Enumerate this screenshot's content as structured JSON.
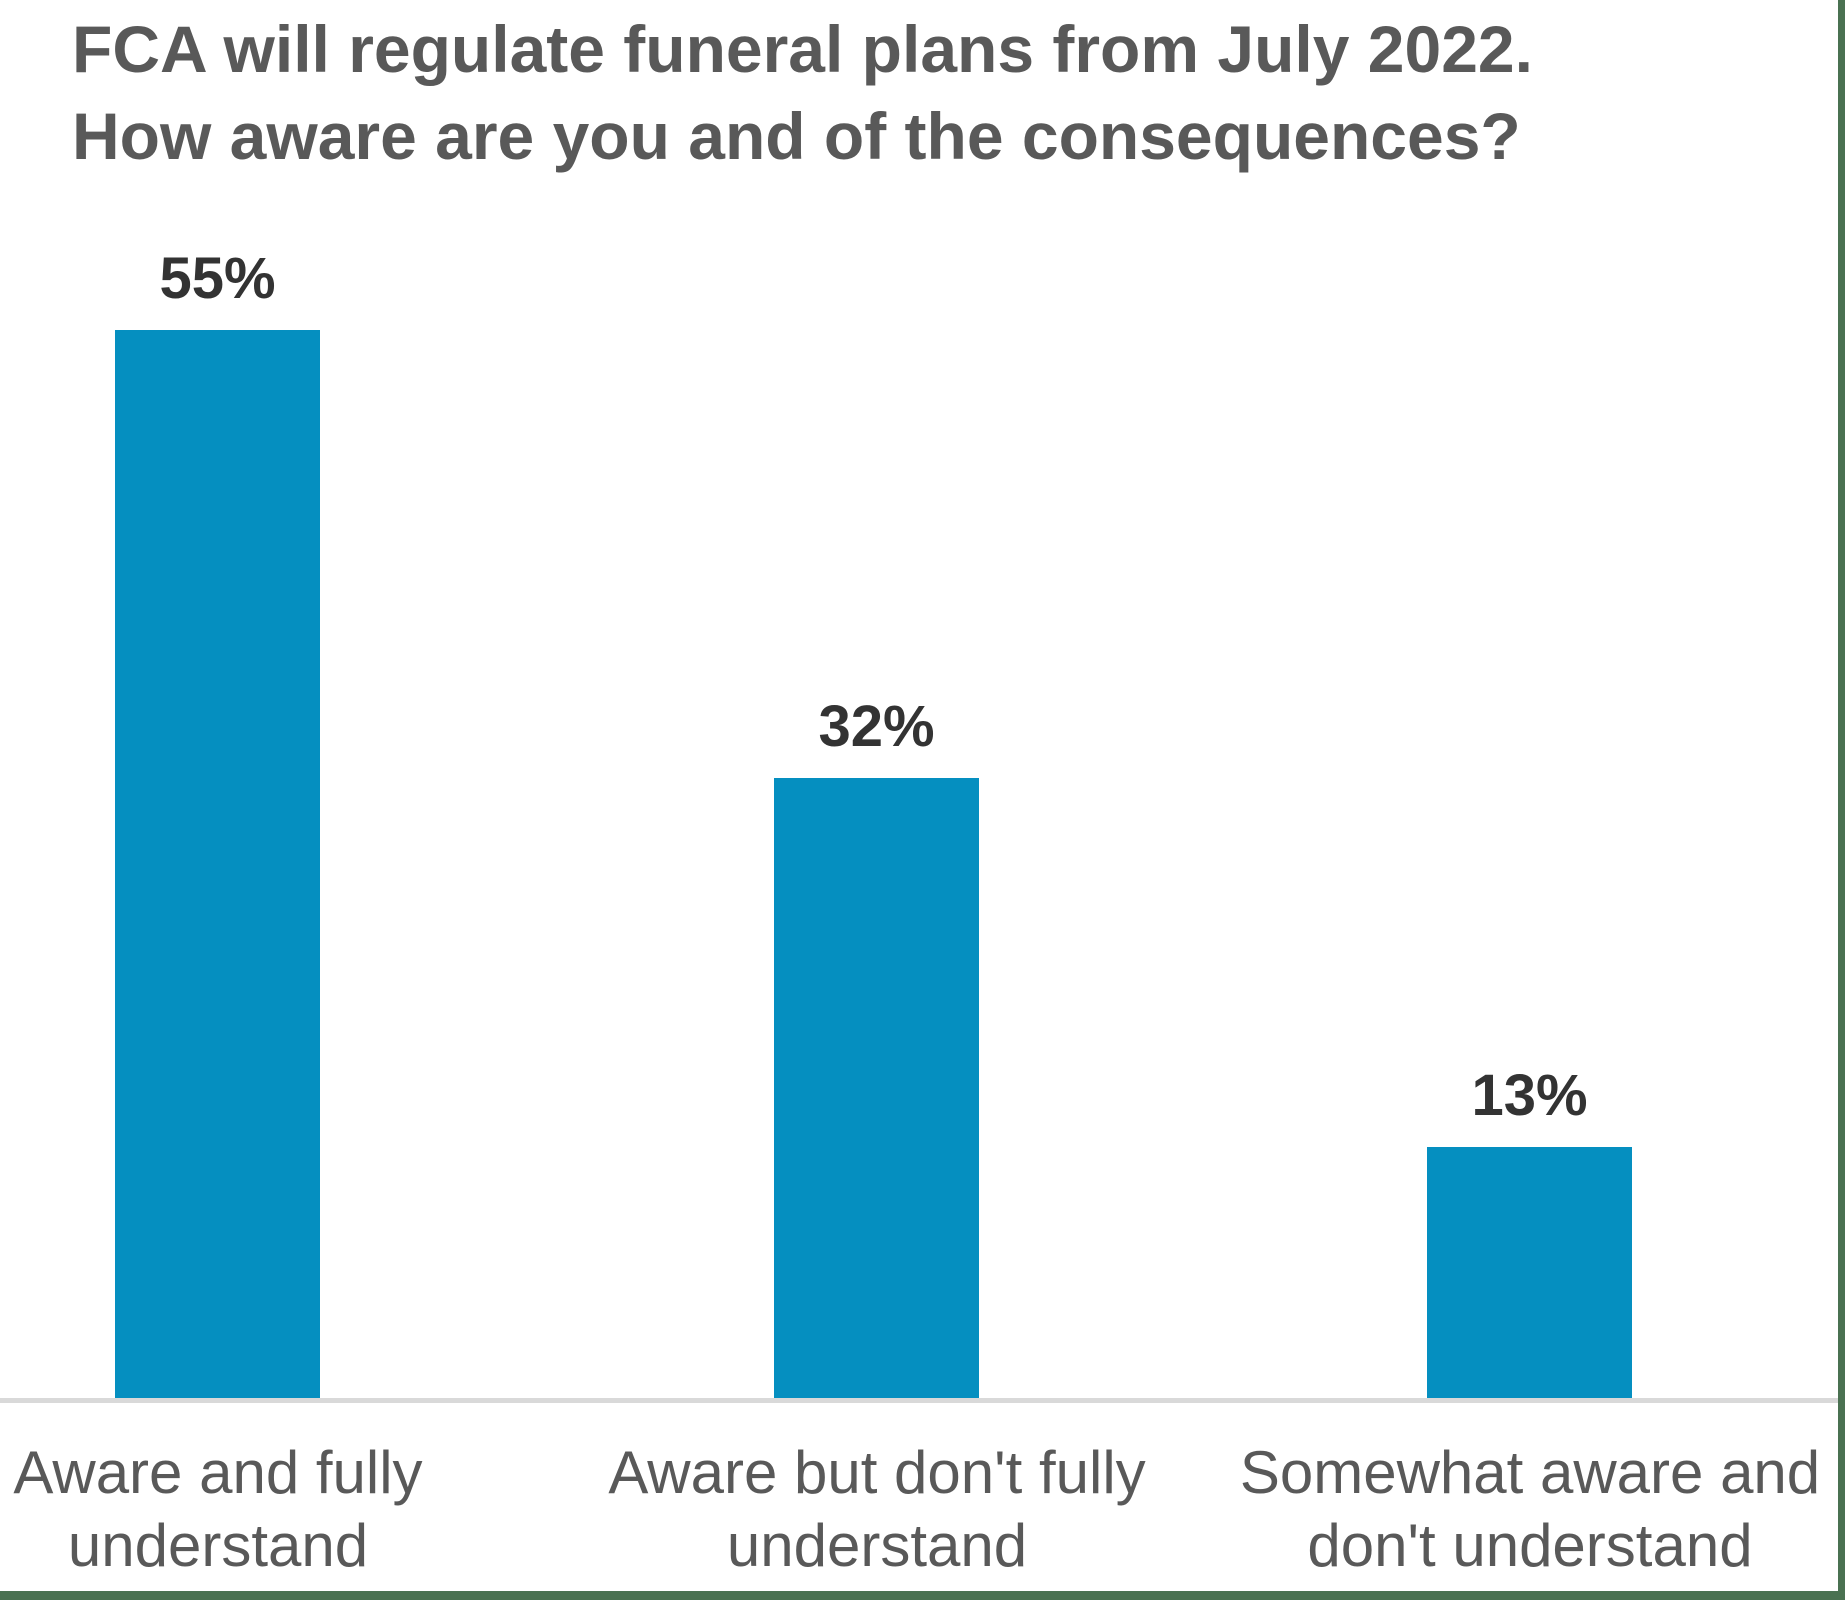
{
  "chart_data": {
    "type": "bar",
    "title": "FCA will regulate funeral plans from July 2022.\nHow aware are you and of the consequences?",
    "categories": [
      "Aware and fully\nunderstand",
      "Aware but don't fully\nunderstand",
      "Somewhat aware and\ndon't understand"
    ],
    "values": [
      55,
      32,
      13
    ],
    "value_labels": [
      "55%",
      "32%",
      "13%"
    ],
    "xlabel": "",
    "ylabel": "",
    "ylim": [
      0,
      62
    ],
    "grid": false,
    "legend": false,
    "data_labels_position": "above-bars",
    "colors": {
      "bar": "#058fc0",
      "title_text": "#595959",
      "value_text": "#333333",
      "category_text": "#595959",
      "axis_line": "#d9d9d9",
      "frame_border": "#4a7151",
      "background": "#ffffff"
    }
  }
}
